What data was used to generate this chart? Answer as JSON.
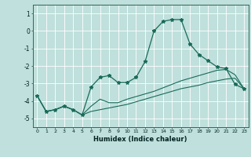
{
  "xlabel": "Humidex (Indice chaleur)",
  "bg_color": "#bfe0dc",
  "line_color": "#1a6b5a",
  "grid_color": "#ffffff",
  "xlim": [
    -0.5,
    23.5
  ],
  "ylim": [
    -5.5,
    1.5
  ],
  "yticks": [
    1,
    0,
    -1,
    -2,
    -3,
    -4,
    -5
  ],
  "xticks": [
    0,
    1,
    2,
    3,
    4,
    5,
    6,
    7,
    8,
    9,
    10,
    11,
    12,
    13,
    14,
    15,
    16,
    17,
    18,
    19,
    20,
    21,
    22,
    23
  ],
  "line1_x": [
    0,
    1,
    2,
    3,
    4,
    5,
    6,
    7,
    8,
    9,
    10,
    11,
    12,
    13,
    14,
    15,
    16,
    17,
    18,
    19,
    20,
    21,
    22,
    23
  ],
  "line1_y": [
    -3.7,
    -4.6,
    -4.5,
    -4.3,
    -4.5,
    -4.8,
    -3.2,
    -2.65,
    -2.55,
    -2.95,
    -2.95,
    -2.65,
    -1.75,
    0.0,
    0.55,
    0.65,
    0.65,
    -0.75,
    -1.35,
    -1.7,
    -2.05,
    -2.15,
    -3.05,
    -3.3
  ],
  "line2_x": [
    0,
    1,
    2,
    3,
    4,
    5,
    6,
    7,
    8,
    9,
    10,
    11,
    12,
    13,
    14,
    15,
    16,
    17,
    18,
    19,
    20,
    21,
    22,
    23
  ],
  "line2_y": [
    -3.7,
    -4.6,
    -4.5,
    -4.3,
    -4.5,
    -4.8,
    -4.3,
    -3.9,
    -4.1,
    -4.1,
    -3.9,
    -3.75,
    -3.6,
    -3.45,
    -3.25,
    -3.05,
    -2.85,
    -2.7,
    -2.55,
    -2.4,
    -2.25,
    -2.2,
    -2.5,
    -3.3
  ],
  "line3_x": [
    0,
    1,
    2,
    3,
    4,
    5,
    6,
    7,
    8,
    9,
    10,
    11,
    12,
    13,
    14,
    15,
    16,
    17,
    18,
    19,
    20,
    21,
    22,
    23
  ],
  "line3_y": [
    -3.7,
    -4.6,
    -4.5,
    -4.3,
    -4.5,
    -4.8,
    -4.6,
    -4.5,
    -4.4,
    -4.3,
    -4.2,
    -4.05,
    -3.9,
    -3.75,
    -3.6,
    -3.45,
    -3.3,
    -3.2,
    -3.1,
    -2.95,
    -2.85,
    -2.75,
    -2.7,
    -3.3
  ]
}
